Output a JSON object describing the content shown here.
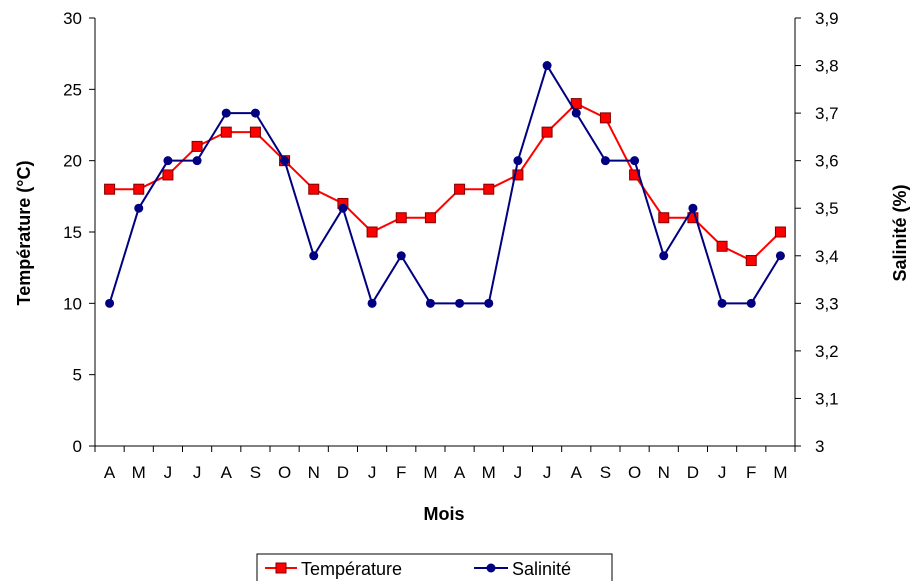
{
  "chart_data": {
    "type": "line",
    "categories": [
      "A",
      "M",
      "J",
      "J",
      "A",
      "S",
      "O",
      "N",
      "D",
      "J",
      "F",
      "M",
      "A",
      "M",
      "J",
      "J",
      "A",
      "S",
      "O",
      "N",
      "D",
      "J",
      "F",
      "M"
    ],
    "series": [
      {
        "name": "Température",
        "axis": "left",
        "color": "#ff0000",
        "marker": "square",
        "values": [
          18,
          18,
          19,
          21,
          22,
          22,
          20,
          18,
          17,
          15,
          16,
          16,
          18,
          18,
          19,
          22,
          24,
          23,
          19,
          16,
          16,
          14,
          13,
          15
        ]
      },
      {
        "name": "Salinité",
        "axis": "right",
        "color": "#000080",
        "marker": "circle",
        "values": [
          3.3,
          3.5,
          3.6,
          3.6,
          3.7,
          3.7,
          3.6,
          3.4,
          3.5,
          3.3,
          3.4,
          3.3,
          3.3,
          3.3,
          3.6,
          3.8,
          3.7,
          3.6,
          3.6,
          3.4,
          3.5,
          3.3,
          3.3,
          3.4
        ]
      }
    ],
    "xlabel": "Mois",
    "ylabel_left": "Température (°C)",
    "ylabel_right": "Salinité (%)",
    "ylim_left": [
      0,
      30
    ],
    "yticks_left": [
      "0",
      "5",
      "10",
      "15",
      "20",
      "25",
      "30"
    ],
    "ylim_right": [
      3,
      3.9
    ],
    "yticks_right": [
      "3",
      "3,1",
      "3,2",
      "3,3",
      "3,4",
      "3,5",
      "3,6",
      "3,7",
      "3,8",
      "3,9"
    ],
    "grid": false,
    "legend_position": "bottom"
  }
}
